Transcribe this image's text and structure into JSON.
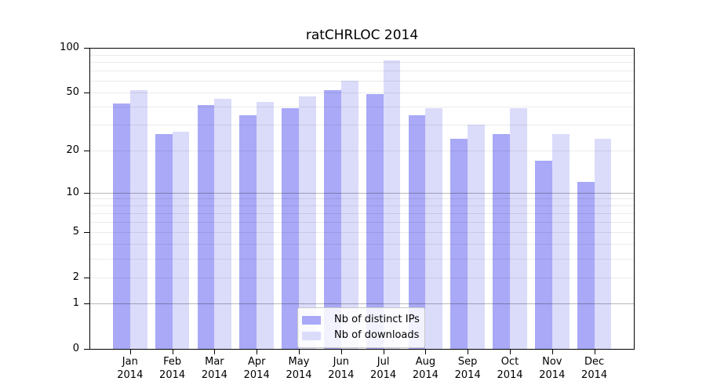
{
  "chart_data": {
    "type": "bar",
    "title": "ratCHRLOC 2014",
    "scale": "log10(1+x)",
    "grid": true,
    "legend_position": "lower center",
    "ylim": [
      0,
      100
    ],
    "y_ticks": [
      100,
      50,
      20,
      10,
      5,
      2,
      1,
      0
    ],
    "minor_gridlines": [
      2,
      3,
      4,
      5,
      6,
      7,
      8,
      9,
      20,
      30,
      40,
      50,
      60,
      70,
      80,
      90
    ],
    "major_gridlines": [
      1,
      10
    ],
    "categories": [
      {
        "month": "Jan",
        "year": "2014"
      },
      {
        "month": "Feb",
        "year": "2014"
      },
      {
        "month": "Mar",
        "year": "2014"
      },
      {
        "month": "Apr",
        "year": "2014"
      },
      {
        "month": "May",
        "year": "2014"
      },
      {
        "month": "Jun",
        "year": "2014"
      },
      {
        "month": "Jul",
        "year": "2014"
      },
      {
        "month": "Aug",
        "year": "2014"
      },
      {
        "month": "Sep",
        "year": "2014"
      },
      {
        "month": "Oct",
        "year": "2014"
      },
      {
        "month": "Nov",
        "year": "2014"
      },
      {
        "month": "Dec",
        "year": "2014"
      }
    ],
    "series": [
      {
        "name": "Nb of distinct IPs",
        "color": "#a9a9f7",
        "values": [
          42,
          26,
          41,
          35,
          39,
          52,
          49,
          35,
          24,
          26,
          17,
          12
        ]
      },
      {
        "name": "Nb of downloads",
        "color": "#dbdbfa",
        "values": [
          52,
          27,
          45,
          43,
          47,
          60,
          82,
          39,
          30,
          39,
          26,
          24
        ]
      }
    ],
    "colors": {
      "axis": "#000000",
      "minor_grid": "#ebebeb",
      "major_grid": "#c0c0c0",
      "legend_border": "#c9c9c9"
    }
  }
}
